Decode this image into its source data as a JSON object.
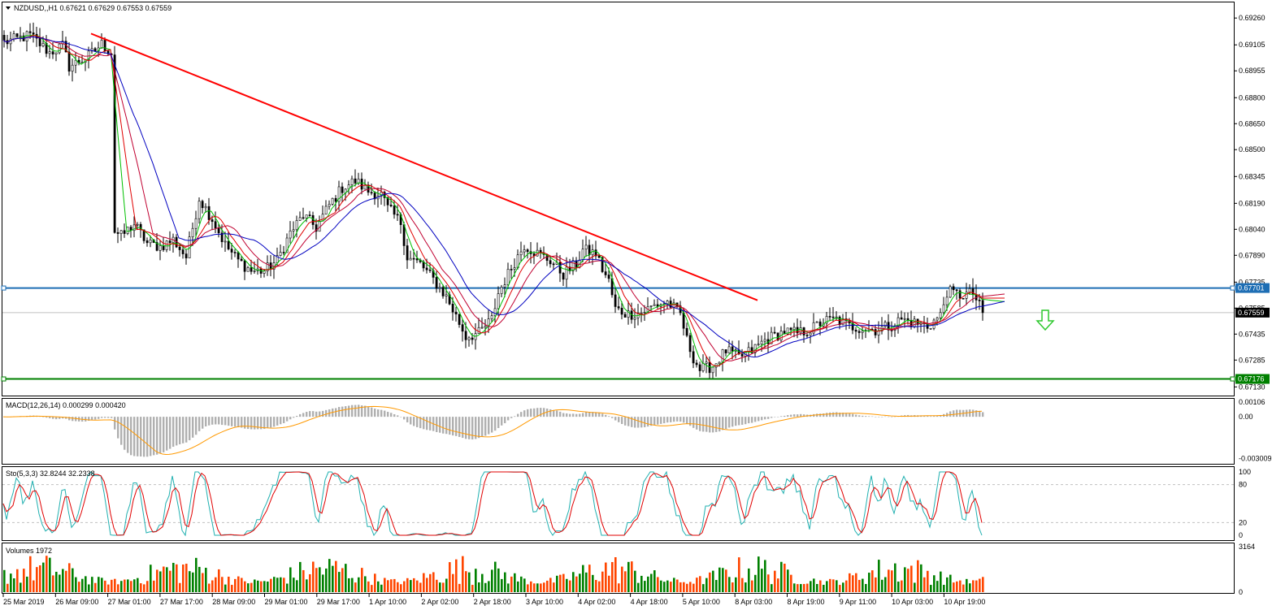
{
  "chart_data": {
    "type": "candlestick",
    "title": "NZDUSD,,H1  0.67621 0.67629 0.67553 0.67559",
    "symbol": "NZDUSD,,H1",
    "ohlc_header": "0.67621 0.67629 0.67553 0.67559",
    "price_ticks": [
      "0.69260",
      "0.69105",
      "0.68955",
      "0.68800",
      "0.68650",
      "0.68500",
      "0.68345",
      "0.68190",
      "0.68040",
      "0.67890",
      "0.67735",
      "0.67585",
      "0.67435",
      "0.67285",
      "0.67130"
    ],
    "y_range": [
      0.6708,
      0.6935
    ],
    "x_ticks": [
      "25 Mar 2019",
      "26 Mar 09:00",
      "27 Mar 01:00",
      "27 Mar 17:00",
      "28 Mar 09:00",
      "29 Mar 01:00",
      "29 Mar 17:00",
      "1 Apr 10:00",
      "2 Apr 02:00",
      "2 Apr 18:00",
      "3 Apr 10:00",
      "4 Apr 02:00",
      "4 Apr 18:00",
      "5 Apr 10:00",
      "8 Apr 03:00",
      "8 Apr 19:00",
      "9 Apr 11:00",
      "10 Apr 03:00",
      "10 Apr 19:00"
    ],
    "close_path": [
      [
        0,
        0.6912
      ],
      [
        8,
        0.6916
      ],
      [
        14,
        0.6906
      ],
      [
        18,
        0.691
      ],
      [
        20,
        0.6898
      ],
      [
        26,
        0.6904
      ],
      [
        30,
        0.6911
      ],
      [
        33,
        0.6906
      ],
      [
        34,
        0.6803
      ],
      [
        36,
        0.68
      ],
      [
        40,
        0.6807
      ],
      [
        44,
        0.6796
      ],
      [
        48,
        0.6794
      ],
      [
        52,
        0.6798
      ],
      [
        56,
        0.6788
      ],
      [
        60,
        0.6822
      ],
      [
        64,
        0.681
      ],
      [
        68,
        0.6795
      ],
      [
        72,
        0.6786
      ],
      [
        76,
        0.678
      ],
      [
        80,
        0.678
      ],
      [
        84,
        0.6786
      ],
      [
        88,
        0.6802
      ],
      [
        92,
        0.6812
      ],
      [
        96,
        0.6805
      ],
      [
        100,
        0.6818
      ],
      [
        104,
        0.6828
      ],
      [
        108,
        0.6832
      ],
      [
        112,
        0.6826
      ],
      [
        116,
        0.6824
      ],
      [
        118,
        0.6816
      ],
      [
        122,
        0.6808
      ],
      [
        124,
        0.6788
      ],
      [
        128,
        0.6784
      ],
      [
        132,
        0.6775
      ],
      [
        136,
        0.6765
      ],
      [
        140,
        0.675
      ],
      [
        142,
        0.6742
      ],
      [
        146,
        0.6744
      ],
      [
        150,
        0.6752
      ],
      [
        152,
        0.6767
      ],
      [
        156,
        0.6782
      ],
      [
        160,
        0.6795
      ],
      [
        164,
        0.679
      ],
      [
        168,
        0.6786
      ],
      [
        172,
        0.6778
      ],
      [
        176,
        0.6784
      ],
      [
        178,
        0.6792
      ],
      [
        182,
        0.679
      ],
      [
        184,
        0.6781
      ],
      [
        186,
        0.6774
      ],
      [
        188,
        0.6758
      ],
      [
        192,
        0.6755
      ],
      [
        196,
        0.6756
      ],
      [
        200,
        0.676
      ],
      [
        204,
        0.6762
      ],
      [
        208,
        0.6755
      ],
      [
        210,
        0.674
      ],
      [
        212,
        0.673
      ],
      [
        214,
        0.6723
      ],
      [
        218,
        0.6725
      ],
      [
        222,
        0.6734
      ],
      [
        226,
        0.673
      ],
      [
        230,
        0.6734
      ],
      [
        234,
        0.674
      ],
      [
        240,
        0.6745
      ],
      [
        244,
        0.6744
      ],
      [
        248,
        0.6746
      ],
      [
        252,
        0.6751
      ],
      [
        256,
        0.6752
      ],
      [
        260,
        0.6748
      ],
      [
        264,
        0.6747
      ],
      [
        268,
        0.6746
      ],
      [
        272,
        0.6748
      ],
      [
        276,
        0.6752
      ],
      [
        280,
        0.675
      ],
      [
        284,
        0.6748
      ],
      [
        288,
        0.6754
      ],
      [
        290,
        0.6768
      ],
      [
        294,
        0.6766
      ],
      [
        298,
        0.6767
      ],
      [
        301,
        0.6756
      ]
    ],
    "total_bars": 302,
    "indicator_ma": {
      "colors": [
        "#00c000",
        "#e00000",
        "#c00030",
        "#0000c0"
      ],
      "periods": [
        5,
        8,
        13,
        21
      ]
    },
    "trendline": {
      "from": [
        27,
        0.6917
      ],
      "to": [
        232,
        0.6763
      ],
      "color": "#ff0000"
    },
    "horizontal_levels": [
      {
        "price": 0.67701,
        "label": "0.67701",
        "color": "#1e6eb4"
      },
      {
        "price": 0.67176,
        "label": "0.67176",
        "color": "#008000"
      }
    ],
    "current_price": {
      "price": 0.67559,
      "label": "0.67559"
    },
    "signal_arrow": {
      "direction": "down",
      "color": "#2ec82e"
    },
    "macd": {
      "label": "MACD(12,26,14) 0.000299 0.000420",
      "ticks": [
        "0.00106",
        "0.00",
        "-0.003009"
      ],
      "y_range": [
        -0.0034,
        0.0013
      ]
    },
    "stochastic": {
      "label": "Sto(5,3,3) 32.8244 32.2338",
      "ticks": [
        "100",
        "80",
        "20",
        "0"
      ],
      "levels": [
        80,
        20
      ],
      "colors": [
        "#20b0b0",
        "#e00000"
      ]
    },
    "volumes": {
      "label": "Volumes 1972",
      "ticks": [
        "3164",
        "0"
      ],
      "max": 3164,
      "colors": [
        "#008000",
        "#ff4500"
      ]
    }
  }
}
